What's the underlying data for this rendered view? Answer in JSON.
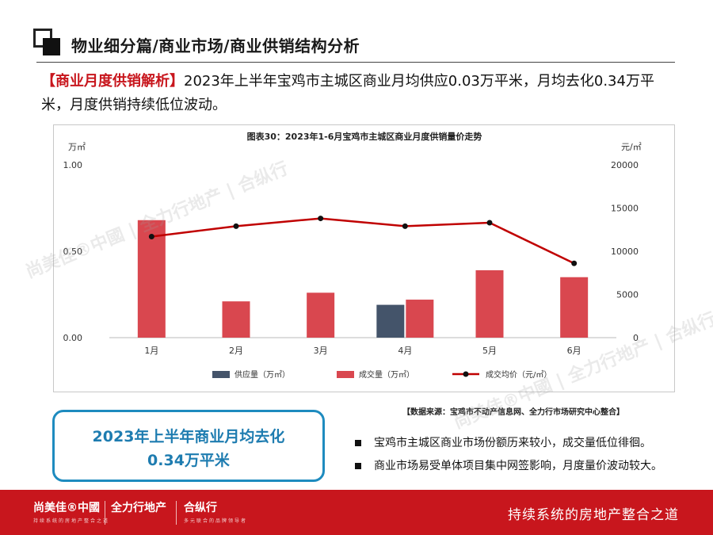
{
  "header": {
    "title": "物业细分篇/商业市场/商业供销结构分析"
  },
  "intro": {
    "tag": "【商业月度供销解析】",
    "text": "2023年上半年宝鸡市主城区商业月均供应0.03万平米，月均去化0.34万平米，月度供销持续低位波动。"
  },
  "chart_data": {
    "type": "bar",
    "title": "图表30：2023年1-6月宝鸡市主城区商业月度供销量价走势",
    "categories": [
      "1月",
      "2月",
      "3月",
      "4月",
      "5月",
      "6月"
    ],
    "y_left_unit": "万㎡",
    "y_right_unit": "元/㎡",
    "ylim_left": [
      0,
      1.0
    ],
    "ylim_right": [
      0,
      20000
    ],
    "y_left_ticks": [
      "0.00",
      "0.50",
      "1.00"
    ],
    "y_right_ticks": [
      "0",
      "5000",
      "10000",
      "15000",
      "20000"
    ],
    "series": [
      {
        "name": "供应量（万㎡）",
        "kind": "bar",
        "axis": "left",
        "color": "#44546a",
        "values": [
          0,
          0,
          0,
          0.19,
          0,
          0
        ]
      },
      {
        "name": "成交量（万㎡）",
        "kind": "bar",
        "axis": "left",
        "color": "#d9474f",
        "values": [
          0.68,
          0.21,
          0.26,
          0.22,
          0.39,
          0.35
        ]
      },
      {
        "name": "成交均价（元/㎡）",
        "kind": "line",
        "axis": "right",
        "color": "#c00000",
        "values": [
          11700,
          12900,
          13800,
          12900,
          13300,
          8600
        ]
      }
    ],
    "grid": false,
    "legend": "bottom"
  },
  "source": "【数据来源：宝鸡市不动产信息网、全力行市场研究中心整合】",
  "highlight": {
    "line1": "2023年上半年商业月均去化",
    "line2": "0.34万平米"
  },
  "bullets": [
    "宝鸡市主城区商业市场份额历来较小，成交量低位徘徊。",
    "商业市场易受单体项目集中网签影响，月度量价波动较大。"
  ],
  "footer": {
    "brand1": "尚美佳®中國",
    "brand1_sub": "持续系统的房地产整合之道",
    "brand2": "全力行地产",
    "brand3": "合纵行",
    "brand3_sub": "多元联合的品牌领导者",
    "slogan": "持续系统的房地产整合之道"
  },
  "watermark": {
    "brand1": "尚美佳®中國",
    "brand2": "全力行地产",
    "brand3": "合纵行"
  },
  "colors": {
    "accent_red": "#c8161d",
    "highlight_blue": "#1e8bbf"
  }
}
